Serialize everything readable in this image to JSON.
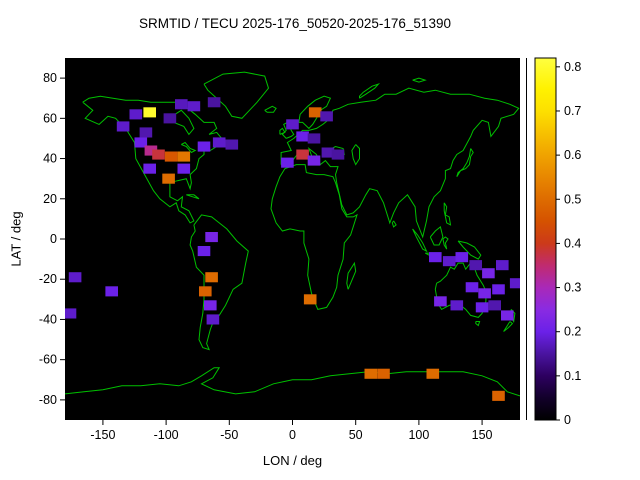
{
  "figure": {
    "title": "SRMTID / TECU 2025-176_50520-2025-176_51390"
  },
  "chart_data": {
    "type": "heatmap",
    "title": "SRMTID / TECU 2025-176_50520-2025-176_51390",
    "xlabel": "LON / deg",
    "ylabel": "LAT / deg",
    "xlim": [
      -180,
      180
    ],
    "ylim": [
      -90,
      90
    ],
    "xticks": [
      -150,
      -100,
      -50,
      0,
      50,
      100,
      150
    ],
    "yticks": [
      80,
      60,
      40,
      20,
      0,
      -20,
      -40,
      -60,
      -80
    ],
    "grid": false,
    "colorbar": {
      "min": 0,
      "max": 0.82,
      "ticks": [
        0,
        0.1,
        0.2,
        0.3,
        0.4,
        0.5,
        0.6,
        0.7,
        0.8
      ]
    },
    "cell_size_deg": {
      "lon": 10,
      "lat": 5
    },
    "colors": {
      "map_background": "#000000",
      "coastline": "#00c000",
      "tick_text": "#000000",
      "frame": "#000000"
    },
    "palette": [
      [
        0.0,
        "#000000"
      ],
      [
        0.05,
        "#12002a"
      ],
      [
        0.1,
        "#2d0060"
      ],
      [
        0.15,
        "#4a14a0"
      ],
      [
        0.2,
        "#6b21e8"
      ],
      [
        0.25,
        "#8a2be2"
      ],
      [
        0.3,
        "#a929b8"
      ],
      [
        0.35,
        "#c02b70"
      ],
      [
        0.4,
        "#cc3a1a"
      ],
      [
        0.45,
        "#d55200"
      ],
      [
        0.5,
        "#de6c00"
      ],
      [
        0.55,
        "#e88700"
      ],
      [
        0.6,
        "#f0a300"
      ],
      [
        0.65,
        "#f7c100"
      ],
      [
        0.7,
        "#fde000"
      ],
      [
        0.75,
        "#fff200"
      ],
      [
        0.82,
        "#ffff40"
      ]
    ],
    "cells": [
      [
        -124,
        62,
        0.18
      ],
      [
        -113,
        63,
        0.8
      ],
      [
        -97,
        60,
        0.15
      ],
      [
        -88,
        67,
        0.17
      ],
      [
        -78,
        66,
        0.18
      ],
      [
        -62,
        68,
        0.15
      ],
      [
        -134,
        56,
        0.18
      ],
      [
        -120,
        48,
        0.2
      ],
      [
        -116,
        53,
        0.16
      ],
      [
        -112,
        44,
        0.33
      ],
      [
        -106,
        42,
        0.38
      ],
      [
        -96,
        41,
        0.46
      ],
      [
        -86,
        41,
        0.52
      ],
      [
        -113,
        35,
        0.2
      ],
      [
        -98,
        30,
        0.5
      ],
      [
        -86,
        35,
        0.2
      ],
      [
        -70,
        46,
        0.2
      ],
      [
        -58,
        48,
        0.18
      ],
      [
        -48,
        47,
        0.16
      ],
      [
        18,
        63,
        0.48
      ],
      [
        27,
        61,
        0.16
      ],
      [
        0,
        57,
        0.18
      ],
      [
        8,
        51,
        0.2
      ],
      [
        17,
        50,
        0.15
      ],
      [
        8,
        42,
        0.38
      ],
      [
        -4,
        38,
        0.2
      ],
      [
        17,
        39,
        0.22
      ],
      [
        28,
        43,
        0.16
      ],
      [
        36,
        42,
        0.15
      ],
      [
        -64,
        1,
        0.22
      ],
      [
        -70,
        -6,
        0.2
      ],
      [
        -64,
        -19,
        0.5
      ],
      [
        -69,
        -26,
        0.48
      ],
      [
        -65,
        -33,
        0.22
      ],
      [
        -63,
        -40,
        0.18
      ],
      [
        -172,
        -19,
        0.18
      ],
      [
        -143,
        -26,
        0.2
      ],
      [
        -176,
        -37,
        0.18
      ],
      [
        14,
        -30,
        0.5
      ],
      [
        113,
        -9,
        0.2
      ],
      [
        124,
        -11,
        0.18
      ],
      [
        134,
        -9,
        0.2
      ],
      [
        145,
        -13,
        0.16
      ],
      [
        155,
        -17,
        0.22
      ],
      [
        166,
        -13,
        0.18
      ],
      [
        177,
        -22,
        0.18
      ],
      [
        142,
        -24,
        0.2
      ],
      [
        152,
        -27,
        0.22
      ],
      [
        163,
        -25,
        0.2
      ],
      [
        117,
        -31,
        0.22
      ],
      [
        130,
        -33,
        0.18
      ],
      [
        150,
        -34,
        0.2
      ],
      [
        160,
        -33,
        0.16
      ],
      [
        170,
        -38,
        0.22
      ],
      [
        62,
        -67,
        0.5
      ],
      [
        72,
        -67,
        0.48
      ],
      [
        111,
        -67,
        0.5
      ],
      [
        163,
        -78,
        0.48
      ]
    ]
  }
}
